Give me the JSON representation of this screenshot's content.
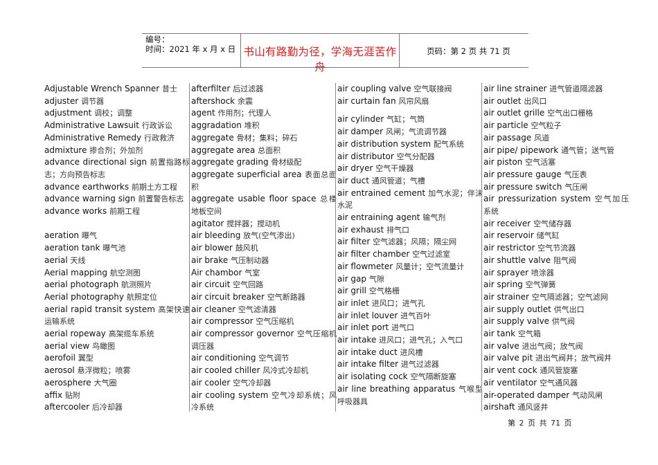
{
  "header": {
    "number_label": "编号：",
    "time_label": "时间：2021 年 x 月 x 日",
    "motto": "书山有路勤为径，学海无涯苦作舟",
    "page_info": "页码：第 2 页  共 71 页",
    "motto_color": "#d81e1e"
  },
  "columns": [
    [
      {
        "term": "Adjustable Wrench Spanner",
        "cn": "昔士"
      },
      {
        "term": "adjuster",
        "cn": "调节器"
      },
      {
        "term": "adjustment",
        "cn": "调校；调整"
      },
      {
        "term": "Administrative Lawsuit",
        "cn": "行政诉讼"
      },
      {
        "term": "Administrative Remedy",
        "cn": "行政救济"
      },
      {
        "term": "admixture",
        "cn": "掺合剂；外加剂"
      },
      {
        "term": "advance directional sign",
        "cn": "前置指路标志；方向预告标志"
      },
      {
        "term": "advance earthworks",
        "cn": "前期土方工程"
      },
      {
        "term": "advance warning sign",
        "cn": "前置警告标志"
      },
      {
        "term": "advance works",
        "cn": "前期工程"
      },
      {
        "term": "aeration",
        "cn": "曝气"
      },
      {
        "term": "aeration tank",
        "cn": "曝气池"
      },
      {
        "term": "aerial",
        "cn": "天线"
      },
      {
        "term": "Aerial mapping",
        "cn": "航空测图"
      },
      {
        "term": "aerial photograph",
        "cn": "航测照片"
      },
      {
        "term": "Aerial photography",
        "cn": "航照定位"
      },
      {
        "term": "aerial rapid transit system",
        "cn": "高架快速运输系统"
      },
      {
        "term": "aerial ropeway",
        "cn": "高架缆车系统"
      },
      {
        "term": "aerial view",
        "cn": "鸟瞰图"
      },
      {
        "term": "aerofoil",
        "cn": "翼型"
      },
      {
        "term": "aerosol",
        "cn": "悬浮微粒；喷雾"
      },
      {
        "term": "aerosphere",
        "cn": "大气圈"
      },
      {
        "term": "affix",
        "cn": "贴附"
      },
      {
        "term": "aftercooler",
        "cn": "后冷却器"
      }
    ],
    [
      {
        "term": "afterfilter",
        "cn": "后过滤器"
      },
      {
        "term": "aftershock",
        "cn": "余震"
      },
      {
        "term": "agent",
        "cn": "作用剂；代理人"
      },
      {
        "term": "aggradation",
        "cn": "堆积"
      },
      {
        "term": "aggregate",
        "cn": "骨材；集料；碎石"
      },
      {
        "term": "aggregate area",
        "cn": "总面积"
      },
      {
        "term": "aggregate grading",
        "cn": "骨材级配"
      },
      {
        "term": "aggregate superficial area",
        "cn": "表面总面积"
      },
      {
        "term": "aggregate usable floor space",
        "cn": "总楼地板空间"
      },
      {
        "term": "agitator",
        "cn": "搅拌器；搅动机"
      },
      {
        "term": "air bleeding",
        "cn": "放气(空气渗出)"
      },
      {
        "term": "air blower",
        "cn": "鼓风机"
      },
      {
        "term": "air brake",
        "cn": "气压制动器"
      },
      {
        "term": "Air chambor",
        "cn": "气室"
      },
      {
        "term": "air circuit",
        "cn": "空气回路"
      },
      {
        "term": "air circuit breaker",
        "cn": "空气断路器"
      },
      {
        "term": "air cleaner",
        "cn": "空气滤清器"
      },
      {
        "term": "air compressor",
        "cn": "空气压缩机"
      },
      {
        "term": "air compressor governor",
        "cn": "空气压缩机调压器"
      },
      {
        "term": "air conditioning",
        "cn": "空气调节"
      },
      {
        "term": "air cooled chiller",
        "cn": "风冷式冷却机"
      },
      {
        "term": "air cooler",
        "cn": "空气冷却器"
      },
      {
        "term": "air cooling system",
        "cn": "空气冷却系统；风冷系统"
      }
    ],
    [
      {
        "term": "air coupling valve",
        "cn": "空气联接阀"
      },
      {
        "term": "air curtain fan",
        "cn": "风帘风扇"
      },
      {
        "term": "air cylinder",
        "cn": "气缸；气筒"
      },
      {
        "term": "air damper",
        "cn": "风闸；气流调节器"
      },
      {
        "term": "air distribution system",
        "cn": "配气系统"
      },
      {
        "term": "air distributor",
        "cn": "空气分配器"
      },
      {
        "term": "air dryer",
        "cn": "空气干燥器"
      },
      {
        "term": "air duct",
        "cn": "通风管道；气槽"
      },
      {
        "term": "air entrained cement",
        "cn": "加气水泥；伴沫水泥"
      },
      {
        "term": "air entraining agent",
        "cn": "输气剂"
      },
      {
        "term": "air exhaust",
        "cn": "排气口"
      },
      {
        "term": "air filter",
        "cn": "空气滤器；风隔；隔尘网"
      },
      {
        "term": "air filter chamber",
        "cn": "空气过滤室"
      },
      {
        "term": "air flowmeter",
        "cn": "风量计；空气流量计"
      },
      {
        "term": "air gap",
        "cn": "气隙"
      },
      {
        "term": "air grill",
        "cn": "空气格栅"
      },
      {
        "term": "air inlet",
        "cn": "进风口；进气孔"
      },
      {
        "term": "air inlet louver",
        "cn": "进气百叶"
      },
      {
        "term": "air inlet port",
        "cn": "进气口"
      },
      {
        "term": "air intake",
        "cn": "进风口；进气孔；入气口"
      },
      {
        "term": "air intake duct",
        "cn": "进风槽"
      },
      {
        "term": "air intake filter",
        "cn": "进气过滤器"
      },
      {
        "term": "air isolating cock",
        "cn": "空气隔断旋塞"
      },
      {
        "term": "air line breathing apparatus",
        "cn": "气喉型呼吸器具"
      }
    ],
    [
      {
        "term": "air line strainer",
        "cn": "进气管道隔滤器"
      },
      {
        "term": "air outlet",
        "cn": "出风口"
      },
      {
        "term": "air outlet grille",
        "cn": "空气出口栅格"
      },
      {
        "term": "air particle",
        "cn": "空气粒子"
      },
      {
        "term": "air passage",
        "cn": "风道"
      },
      {
        "term": "air pipe/ pipework",
        "cn": "通气管；送气管"
      },
      {
        "term": "air piston",
        "cn": "空气活塞"
      },
      {
        "term": "air pressure gauge",
        "cn": "气压表"
      },
      {
        "term": "air pressure switch",
        "cn": "气压闸"
      },
      {
        "term": "air pressurization system",
        "cn": "空气加压系统"
      },
      {
        "term": "air receiver",
        "cn": "空气储存器"
      },
      {
        "term": "air reservoir",
        "cn": "储气缸"
      },
      {
        "term": "air restrictor",
        "cn": "空气节流器"
      },
      {
        "term": "air shuttle valve",
        "cn": "阻气阀"
      },
      {
        "term": "air sprayer",
        "cn": "喷涂器"
      },
      {
        "term": "air spring",
        "cn": "空气弹簧"
      },
      {
        "term": "air strainer",
        "cn": "空气隔滤器；空气滤网"
      },
      {
        "term": "air supply outlet",
        "cn": "供气出口"
      },
      {
        "term": "air supply valve",
        "cn": "供气阀"
      },
      {
        "term": "air tank",
        "cn": "空气箱"
      },
      {
        "term": "air valve",
        "cn": "进出气阀；放气阀"
      },
      {
        "term": "air valve pit",
        "cn": "进出气阀井；放气阀井"
      },
      {
        "term": "air vent cock",
        "cn": "通风管旋塞"
      },
      {
        "term": "air ventilator",
        "cn": "空气通风器"
      },
      {
        "term": "air-operated damper",
        "cn": "气动风闸"
      },
      {
        "term": "airshaft",
        "cn": "通风竖井"
      }
    ]
  ],
  "footer": {
    "page_label": "第 2 页 共 71 页"
  }
}
